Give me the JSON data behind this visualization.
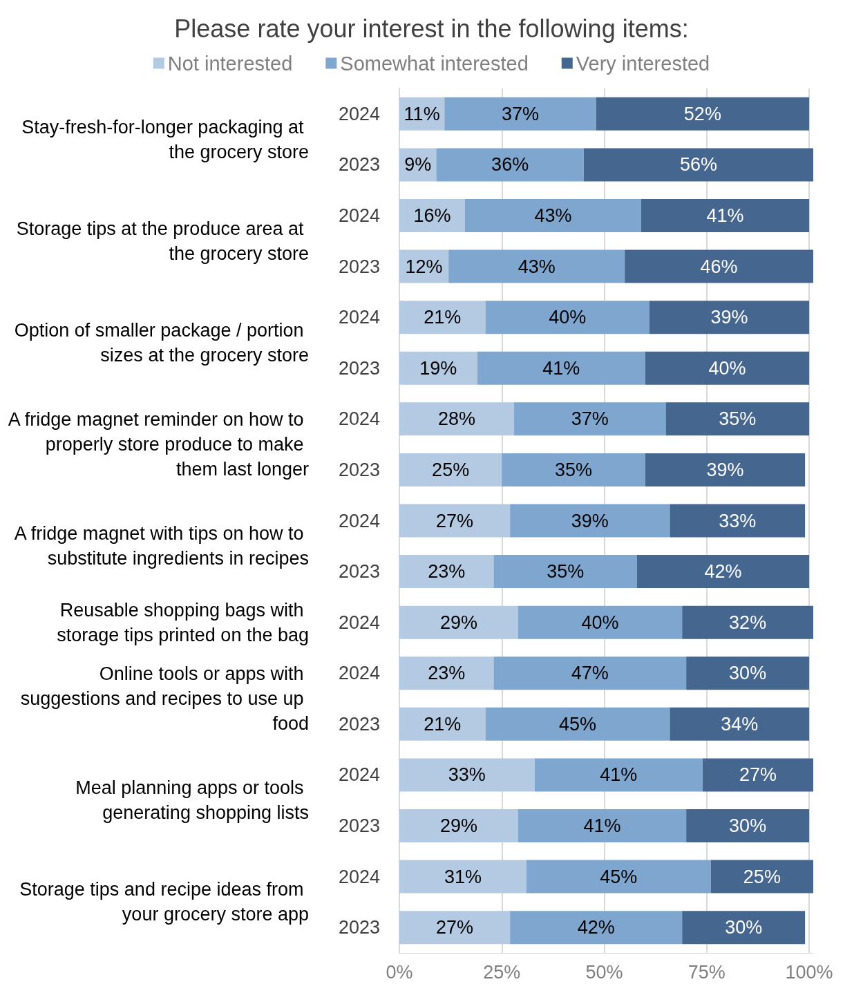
{
  "chart_data": {
    "type": "bar",
    "orientation": "horizontal",
    "stacked": true,
    "title": "Please rate your interest in the following items:",
    "categories": [
      "2024",
      "2023",
      "2024",
      "2023",
      "2024",
      "2023",
      "2024",
      "2023",
      "2024",
      "2023",
      "2024",
      "2024",
      "2023",
      "2024",
      "2023",
      "2024",
      "2023"
    ],
    "series": [
      {
        "name": "Not interested",
        "color": "#b4c9e2",
        "values": [
          11,
          9,
          16,
          12,
          21,
          19,
          28,
          25,
          27,
          23,
          29,
          23,
          21,
          33,
          29,
          31,
          27
        ],
        "value_labels": [
          "11%",
          "9%",
          "16%",
          "12%",
          "21%",
          "19%",
          "28%",
          "25%",
          "27%",
          "23%",
          "29%",
          "23%",
          "21%",
          "33%",
          "29%",
          "31%",
          "27%"
        ]
      },
      {
        "name": "Somewhat interested",
        "color": "#7fa6cf",
        "values": [
          37,
          36,
          43,
          43,
          40,
          41,
          37,
          35,
          39,
          35,
          40,
          47,
          45,
          41,
          41,
          45,
          42
        ],
        "value_labels": [
          "37%",
          "36%",
          "43%",
          "43%",
          "40%",
          "41%",
          "37%",
          "35%",
          "39%",
          "35%",
          "40%",
          "47%",
          "45%",
          "41%",
          "41%",
          "45%",
          "42%"
        ]
      },
      {
        "name": "Very interested",
        "color": "#44668f",
        "values": [
          52,
          56,
          41,
          46,
          39,
          40,
          35,
          39,
          33,
          42,
          32,
          30,
          34,
          27,
          30,
          25,
          30
        ],
        "value_labels": [
          "52%",
          "56%",
          "41%",
          "46%",
          "39%",
          "40%",
          "35%",
          "39%",
          "33%",
          "42%",
          "32%",
          "30%",
          "34%",
          "27%",
          "30%",
          "25%",
          "30%"
        ]
      }
    ],
    "xlim": [
      0,
      101
    ],
    "xticks": [
      {
        "value": 0,
        "label": "0%"
      },
      {
        "value": 25,
        "label": "25%"
      },
      {
        "value": 50,
        "label": "50%"
      },
      {
        "value": 75,
        "label": "75%"
      },
      {
        "value": 100,
        "label": "100%"
      }
    ],
    "annotations": [
      "Stay-fresh-for-longer packaging at the grocery store",
      "Storage tips at the produce area at the grocery store",
      "Option of smaller package / portion sizes at the grocery store",
      "A fridge magnet reminder on how to properly store produce to make them last longer",
      "A fridge magnet with tips on how to substitute ingredients in recipes",
      "Reusable shopping bags with storage tips printed on the bag",
      "Online tools or apps with suggestions and recipes to use up food",
      "Meal planning apps or tools generating shopping lists",
      "Storage tips and recipe ideas from your grocery store app"
    ],
    "grid": "x",
    "legend": "top"
  }
}
